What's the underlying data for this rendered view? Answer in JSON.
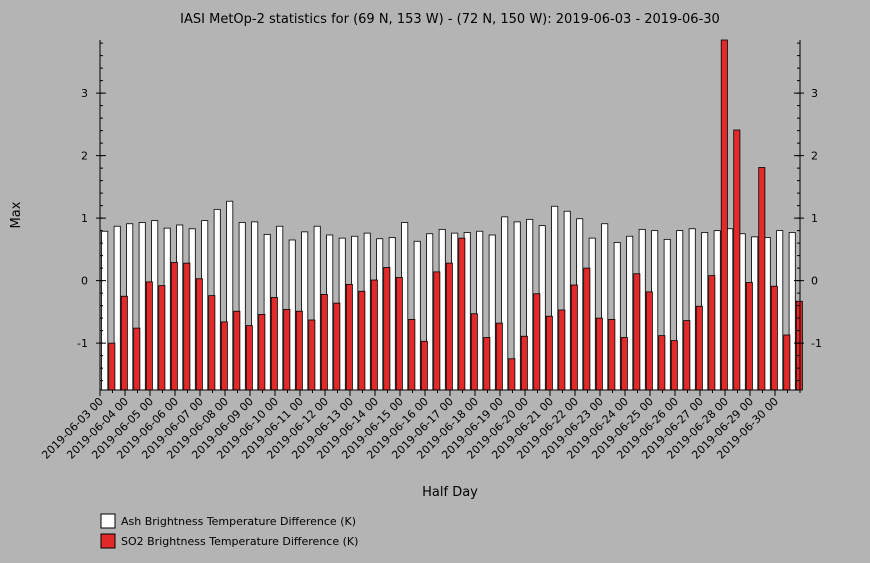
{
  "chart_data": {
    "type": "bar",
    "title": "IASI MetOp-2 statistics for (69 N, 153 W) - (72 N, 150 W): 2019-06-03 - 2019-06-30",
    "xlabel": "Half Day",
    "ylabel": "Max",
    "ylim": [
      -1.75,
      3.85
    ],
    "yticks": [
      -1,
      0,
      1,
      2,
      3
    ],
    "x_tick_labels": [
      "2019-06-03 00",
      "2019-06-04 00",
      "2019-06-05 00",
      "2019-06-06 00",
      "2019-06-07 00",
      "2019-06-08 00",
      "2019-06-09 00",
      "2019-06-10 00",
      "2019-06-11 00",
      "2019-06-12 00",
      "2019-06-13 00",
      "2019-06-14 00",
      "2019-06-15 00",
      "2019-06-16 00",
      "2019-06-17 00",
      "2019-06-18 00",
      "2019-06-19 00",
      "2019-06-20 00",
      "2019-06-21 00",
      "2019-06-22 00",
      "2019-06-23 00",
      "2019-06-24 00",
      "2019-06-25 00",
      "2019-06-26 00",
      "2019-06-27 00",
      "2019-06-28 00",
      "2019-06-29 00",
      "2019-06-30 00"
    ],
    "legend_position": "bottom-left",
    "series": [
      {
        "name": "Ash Brightness Temperature Difference (K)",
        "color": "#ffffff",
        "values": [
          0.79,
          0.87,
          0.91,
          0.93,
          0.96,
          0.84,
          0.89,
          0.83,
          0.96,
          1.14,
          1.27,
          0.93,
          0.94,
          0.74,
          0.87,
          0.65,
          0.78,
          0.87,
          0.73,
          0.68,
          0.71,
          0.76,
          0.67,
          0.69,
          0.93,
          0.63,
          0.75,
          0.82,
          0.76,
          0.77,
          0.79,
          0.73,
          1.02,
          0.94,
          0.98,
          0.88,
          1.19,
          1.11,
          0.99,
          0.68,
          0.91,
          0.61,
          0.71,
          0.82,
          0.8,
          0.66,
          0.8,
          0.83,
          0.77,
          0.8,
          0.83,
          0.75,
          0.7,
          0.69,
          0.8,
          0.77
        ]
      },
      {
        "name": "SO2 Brightness Temperature Difference (K)",
        "color": "#e32a2a",
        "values": [
          -1.0,
          -0.25,
          -0.76,
          -0.02,
          -0.08,
          0.29,
          0.28,
          0.03,
          -0.24,
          -0.66,
          -0.49,
          -0.72,
          -0.54,
          -0.27,
          -0.46,
          -0.49,
          -0.63,
          -0.22,
          -0.36,
          -0.06,
          -0.17,
          0.01,
          0.21,
          0.05,
          -0.62,
          -0.97,
          0.14,
          0.28,
          0.68,
          -0.53,
          -0.91,
          -0.68,
          -1.25,
          -0.89,
          -0.21,
          -0.57,
          -0.47,
          -0.07,
          0.2,
          -0.6,
          -0.62,
          -0.91,
          0.11,
          -0.18,
          -0.88,
          -0.96,
          -0.64,
          -0.41,
          0.08,
          3.85,
          2.41,
          -0.03,
          1.81,
          -0.09,
          -0.87,
          -0.33
        ]
      }
    ]
  }
}
